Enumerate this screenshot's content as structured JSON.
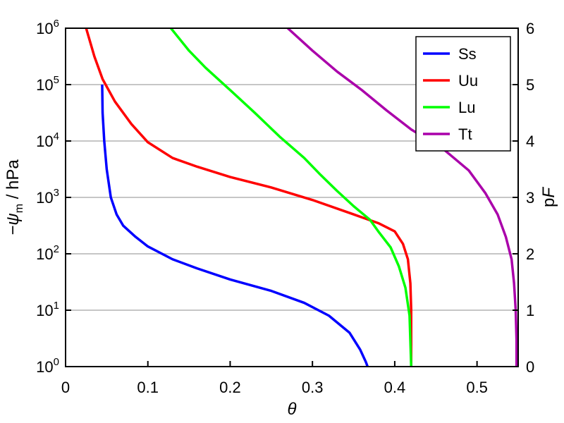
{
  "chart_data": {
    "type": "line",
    "xlabel": "θ",
    "ylabel_left": "−ψ",
    "ylabel_left_sub": "m",
    "ylabel_left_unit": " / hPa",
    "ylabel_right_prefix": "p",
    "ylabel_right_var": "F",
    "xlim": [
      0,
      0.55
    ],
    "ylim": [
      1,
      1000000
    ],
    "yscale": "log",
    "right_axis_lim": [
      0,
      6
    ],
    "grid": "horizontal",
    "legend_position": "top-right",
    "x_ticks": [
      "0",
      "0.1",
      "0.2",
      "0.3",
      "0.4",
      "0.5"
    ],
    "x_tick_values": [
      0,
      0.1,
      0.2,
      0.3,
      0.4,
      0.5
    ],
    "y_ticks": [
      {
        "base": "10",
        "exp": "0",
        "value": 1
      },
      {
        "base": "10",
        "exp": "1",
        "value": 10
      },
      {
        "base": "10",
        "exp": "2",
        "value": 100
      },
      {
        "base": "10",
        "exp": "3",
        "value": 1000
      },
      {
        "base": "10",
        "exp": "4",
        "value": 10000
      },
      {
        "base": "10",
        "exp": "5",
        "value": 100000
      },
      {
        "base": "10",
        "exp": "6",
        "value": 1000000
      }
    ],
    "right_ticks": [
      "0",
      "1",
      "2",
      "3",
      "4",
      "5",
      "6"
    ],
    "right_tick_values": [
      0,
      1,
      2,
      3,
      4,
      5,
      6
    ],
    "series": [
      {
        "name": "Ss",
        "color": "#0000ff",
        "points": [
          [
            0.0445,
            100000
          ],
          [
            0.045,
            31600
          ],
          [
            0.047,
            10000
          ],
          [
            0.05,
            3160
          ],
          [
            0.055,
            1000
          ],
          [
            0.062,
            500
          ],
          [
            0.07,
            316
          ],
          [
            0.085,
            200
          ],
          [
            0.1,
            135
          ],
          [
            0.13,
            80
          ],
          [
            0.16,
            55
          ],
          [
            0.2,
            35
          ],
          [
            0.25,
            22
          ],
          [
            0.29,
            13.5
          ],
          [
            0.32,
            8
          ],
          [
            0.345,
            4
          ],
          [
            0.358,
            2
          ],
          [
            0.365,
            1.2
          ],
          [
            0.367,
            1
          ]
        ]
      },
      {
        "name": "Uu",
        "color": "#ff0000",
        "points": [
          [
            0.025,
            1000000
          ],
          [
            0.035,
            316000
          ],
          [
            0.045,
            125000
          ],
          [
            0.06,
            50000
          ],
          [
            0.08,
            20000
          ],
          [
            0.1,
            9500
          ],
          [
            0.13,
            5000
          ],
          [
            0.16,
            3500
          ],
          [
            0.2,
            2300
          ],
          [
            0.25,
            1500
          ],
          [
            0.3,
            900
          ],
          [
            0.35,
            500
          ],
          [
            0.38,
            350
          ],
          [
            0.4,
            250
          ],
          [
            0.41,
            150
          ],
          [
            0.416,
            80
          ],
          [
            0.419,
            30
          ],
          [
            0.42,
            10
          ],
          [
            0.42,
            1
          ]
        ]
      },
      {
        "name": "Lu",
        "color": "#00ff00",
        "points": [
          [
            0.128,
            1000000
          ],
          [
            0.15,
            400000
          ],
          [
            0.17,
            200000
          ],
          [
            0.2,
            80000
          ],
          [
            0.23,
            31600
          ],
          [
            0.26,
            12000
          ],
          [
            0.29,
            5000
          ],
          [
            0.31,
            2500
          ],
          [
            0.33,
            1300
          ],
          [
            0.35,
            700
          ],
          [
            0.37,
            400
          ],
          [
            0.38,
            250
          ],
          [
            0.395,
            130
          ],
          [
            0.405,
            60
          ],
          [
            0.413,
            25
          ],
          [
            0.418,
            8
          ],
          [
            0.42,
            1
          ]
        ]
      },
      {
        "name": "Tt",
        "color": "#aa00aa",
        "points": [
          [
            0.27,
            1000000
          ],
          [
            0.3,
            400000
          ],
          [
            0.33,
            170000
          ],
          [
            0.36,
            80000
          ],
          [
            0.39,
            35000
          ],
          [
            0.42,
            16000
          ],
          [
            0.46,
            7000
          ],
          [
            0.49,
            3000
          ],
          [
            0.51,
            1200
          ],
          [
            0.525,
            500
          ],
          [
            0.535,
            200
          ],
          [
            0.542,
            80
          ],
          [
            0.545,
            30
          ],
          [
            0.547,
            10
          ],
          [
            0.548,
            3
          ],
          [
            0.548,
            1
          ]
        ]
      }
    ]
  }
}
